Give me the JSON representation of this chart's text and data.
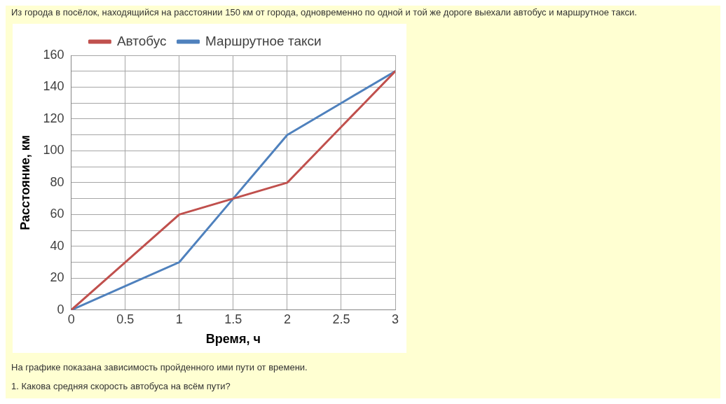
{
  "chart_data": {
    "type": "line",
    "title": "Из города в посёлок, находящийся на расстоянии 150 км от города, одновременно по одной и той же дороге выехали автобус и маршрутное такси.",
    "annotations": [
      "На графике показана зависимость пройденного ими пути от времени.",
      "1. Какова средняя скорость автобуса на всём пути?"
    ],
    "xlabel": "Время, ч",
    "ylabel": "Расстояние, км",
    "x": [
      0,
      0.5,
      1,
      1.5,
      2,
      2.5,
      3
    ],
    "series": [
      {
        "name": "Автобус",
        "color": "#c0504d",
        "values": [
          0,
          30,
          60,
          70,
          80,
          115,
          150
        ]
      },
      {
        "name": "Маршрутное такси",
        "color": "#4f81bd",
        "values": [
          0,
          15,
          30,
          70,
          110,
          130,
          150
        ]
      }
    ],
    "xlim": [
      0,
      3
    ],
    "xticks": [
      0,
      0.5,
      1,
      1.5,
      2,
      2.5,
      3
    ],
    "ylim": [
      0,
      160
    ],
    "yticks": [
      0,
      {
        "value": 10,
        "label": null
      },
      20,
      {
        "value": 30,
        "label": null
      },
      40,
      {
        "value": 50,
        "label": null
      },
      60,
      {
        "value": 70,
        "label": null
      },
      80,
      {
        "value": 90,
        "label": null
      },
      100,
      {
        "value": 110,
        "label": null
      },
      120,
      {
        "value": 130,
        "label": null
      },
      140,
      {
        "value": 150,
        "label": null
      },
      160
    ],
    "grid": true,
    "legend": "top",
    "marker": "none",
    "line_style": "solid"
  }
}
